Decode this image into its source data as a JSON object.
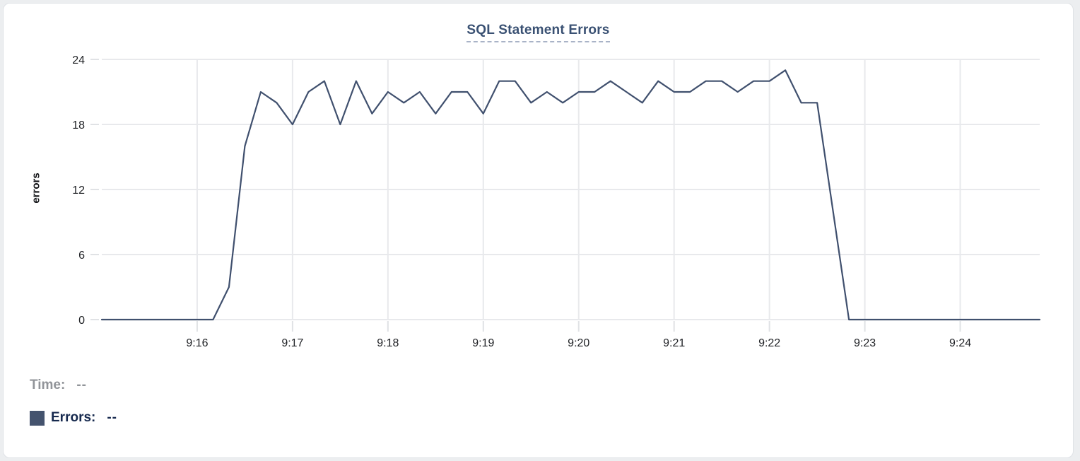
{
  "chart_data": {
    "type": "line",
    "title": "SQL Statement Errors",
    "xlabel": "",
    "ylabel": "errors",
    "ylim": [
      0,
      24
    ],
    "y_ticks": [
      0,
      6,
      12,
      18,
      24
    ],
    "x_tick_labels": [
      "9:16",
      "9:17",
      "9:18",
      "9:19",
      "9:20",
      "9:21",
      "9:22",
      "9:23",
      "9:24"
    ],
    "grid": true,
    "legend_position": "bottom-left",
    "x": [
      "9:15:00",
      "9:15:10",
      "9:15:20",
      "9:15:30",
      "9:15:40",
      "9:15:50",
      "9:16:00",
      "9:16:10",
      "9:16:20",
      "9:16:30",
      "9:16:40",
      "9:16:50",
      "9:17:00",
      "9:17:10",
      "9:17:20",
      "9:17:30",
      "9:17:40",
      "9:17:50",
      "9:18:00",
      "9:18:10",
      "9:18:20",
      "9:18:30",
      "9:18:40",
      "9:18:50",
      "9:19:00",
      "9:19:10",
      "9:19:20",
      "9:19:30",
      "9:19:40",
      "9:19:50",
      "9:20:00",
      "9:20:10",
      "9:20:20",
      "9:20:30",
      "9:20:40",
      "9:20:50",
      "9:21:00",
      "9:21:10",
      "9:21:20",
      "9:21:30",
      "9:21:40",
      "9:21:50",
      "9:22:00",
      "9:22:10",
      "9:22:20",
      "9:22:30",
      "9:22:40",
      "9:22:50",
      "9:23:00",
      "9:23:10",
      "9:23:20",
      "9:23:30",
      "9:23:40",
      "9:23:50",
      "9:24:00",
      "9:24:10",
      "9:24:20",
      "9:24:30",
      "9:24:40",
      "9:24:50"
    ],
    "series": [
      {
        "name": "Errors",
        "color": "#40506e",
        "values": [
          0,
          0,
          0,
          0,
          0,
          0,
          0,
          0,
          3,
          16,
          21,
          20,
          18,
          21,
          22,
          18,
          22,
          19,
          21,
          20,
          21,
          19,
          21,
          21,
          19,
          22,
          22,
          20,
          21,
          20,
          21,
          21,
          22,
          21,
          20,
          22,
          21,
          21,
          22,
          22,
          21,
          22,
          22,
          23,
          20,
          20,
          10,
          0,
          0,
          0,
          0,
          0,
          0,
          0,
          0,
          0,
          0,
          0,
          0,
          0
        ]
      }
    ]
  },
  "legend": {
    "time_label": "Time:",
    "time_value": "--",
    "errors_label": "Errors:",
    "errors_value": "--",
    "swatch_color": "#44536e"
  },
  "colors": {
    "line": "#40506e",
    "title_text": "#3a5173",
    "title_underline": "#a9b3c7",
    "gridline": "#e8e9ec",
    "tick_mark": "#e0e2e5",
    "axis_text": "#202226",
    "time_text": "#919499",
    "errors_text": "#16294e",
    "card_border": "#dfe2e6",
    "card_background": "#ffffff"
  }
}
